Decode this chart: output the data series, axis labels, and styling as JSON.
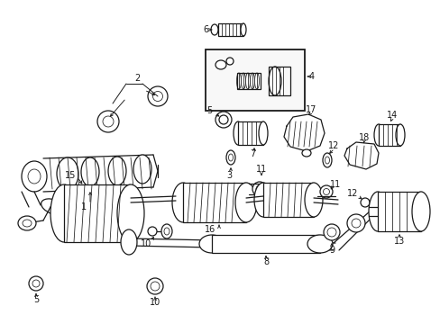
{
  "background_color": "#ffffff",
  "line_color": "#1a1a1a",
  "fig_width": 4.89,
  "fig_height": 3.6,
  "dpi": 100,
  "gray": "#888888",
  "darkgray": "#555555"
}
